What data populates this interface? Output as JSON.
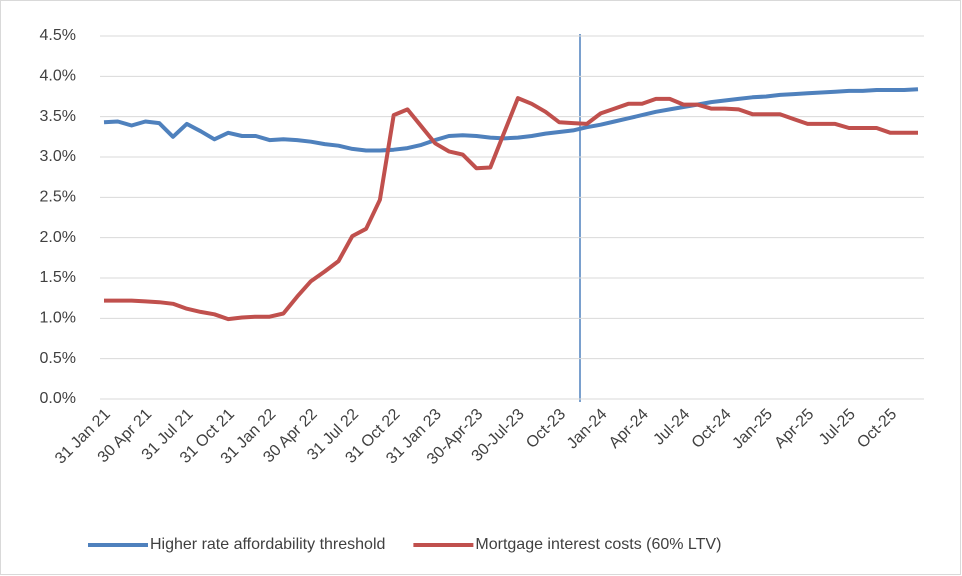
{
  "chart_data": {
    "type": "line",
    "categories": [
      "31 Jan 21",
      null,
      null,
      "30 Apr 21",
      null,
      null,
      "31 Jul 21",
      null,
      null,
      "31 Oct 21",
      null,
      null,
      "31 Jan 22",
      null,
      null,
      "30 Apr 22",
      null,
      null,
      "31 Jul 22",
      null,
      null,
      "31 Oct 22",
      null,
      null,
      "31 Jan 23",
      null,
      null,
      "30-Apr-23",
      null,
      null,
      "30-Jul-23",
      null,
      null,
      "Oct-23",
      null,
      null,
      "Jan-24",
      null,
      null,
      "Apr-24",
      null,
      null,
      "Jul-24",
      null,
      null,
      "Oct-24",
      null,
      null,
      "Jan-25",
      null,
      null,
      "Apr-25",
      null,
      null,
      "Jul-25",
      null,
      null,
      "Oct-25",
      null,
      null
    ],
    "series": [
      {
        "name": "Higher rate affordability threshold",
        "color": "#4f81bd",
        "values": [
          3.43,
          3.44,
          3.39,
          3.44,
          3.42,
          3.25,
          3.41,
          3.32,
          3.22,
          3.3,
          3.26,
          3.26,
          3.21,
          3.22,
          3.21,
          3.19,
          3.16,
          3.14,
          3.1,
          3.08,
          3.08,
          3.09,
          3.11,
          3.15,
          3.21,
          3.26,
          3.27,
          3.26,
          3.24,
          3.23,
          3.24,
          3.26,
          3.29,
          3.31,
          3.33,
          3.37,
          3.4,
          3.44,
          3.48,
          3.52,
          3.56,
          3.59,
          3.62,
          3.65,
          3.68,
          3.7,
          3.72,
          3.74,
          3.75,
          3.77,
          3.78,
          3.79,
          3.8,
          3.81,
          3.82,
          3.82,
          3.83,
          3.83,
          3.83,
          3.84
        ]
      },
      {
        "name": "Mortgage interest costs (60% LTV)",
        "color": "#c0504d",
        "values": [
          1.22,
          1.22,
          1.22,
          1.21,
          1.2,
          1.18,
          1.12,
          1.08,
          1.05,
          0.99,
          1.01,
          1.02,
          1.02,
          1.06,
          1.27,
          1.46,
          1.58,
          1.71,
          2.02,
          2.11,
          2.47,
          3.52,
          3.59,
          3.38,
          3.17,
          3.07,
          3.03,
          2.86,
          2.87,
          3.3,
          3.73,
          3.66,
          3.56,
          3.43,
          3.42,
          3.41,
          3.54,
          3.6,
          3.66,
          3.66,
          3.72,
          3.72,
          3.65,
          3.65,
          3.6,
          3.6,
          3.59,
          3.53,
          3.53,
          3.53,
          3.47,
          3.41,
          3.41,
          3.41,
          3.36,
          3.36,
          3.36,
          3.3,
          3.3,
          3.3
        ]
      }
    ],
    "ylim": [
      0,
      4.5
    ],
    "yticks": [
      {
        "value": 0,
        "label": "0.0%"
      },
      {
        "value": 0.5,
        "label": "0.5%"
      },
      {
        "value": 1,
        "label": "1.0%"
      },
      {
        "value": 1.5,
        "label": "1.5%"
      },
      {
        "value": 2,
        "label": "2.0%"
      },
      {
        "value": 2.5,
        "label": "2.5%"
      },
      {
        "value": 3,
        "label": "3.0%"
      },
      {
        "value": 3.5,
        "label": "3.5%"
      },
      {
        "value": 4,
        "label": "4.0%"
      },
      {
        "value": 4.5,
        "label": "4.5%"
      }
    ],
    "grid": true,
    "legend": "bottom"
  }
}
